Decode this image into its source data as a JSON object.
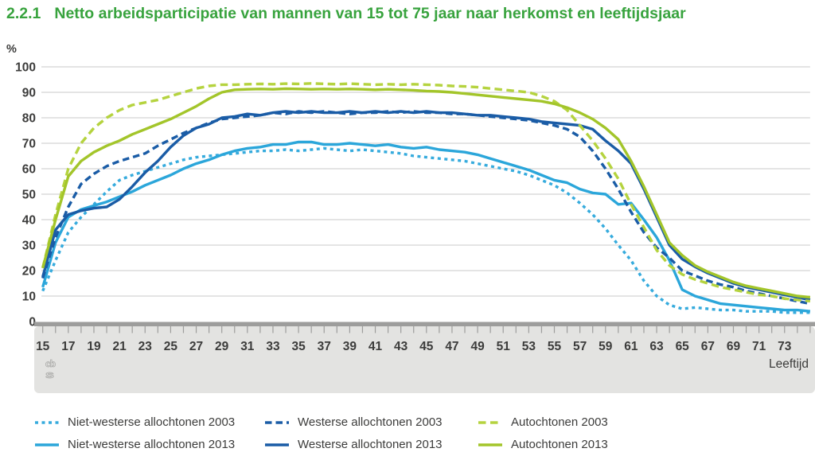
{
  "title": {
    "number": "2.2.1",
    "text": "Netto arbeidsparticipatie van mannen van 15 tot 75 jaar naar herkomst en leeftijdsjaar",
    "color": "#38a33e"
  },
  "chart_data": {
    "type": "line",
    "title": "Netto arbeidsparticipatie van mannen van 15 tot 75 jaar naar herkomst en leeftijdsjaar",
    "y_unit_label": "%",
    "xlabel": "Leeftijd",
    "x_start": 15,
    "x_end": 75,
    "x_tick_step": 1,
    "x_tick_label_step": 2,
    "x_tick_label_last": 73,
    "ylim": [
      0,
      100
    ],
    "y_tick_step": 10,
    "grid": true,
    "legend_position": "bottom",
    "grid_color": "#c9c9c9",
    "axis_bar_color": "#9d9d9c",
    "band_color": "#e3e3e1",
    "series": [
      {
        "label": "Niet-westerse allochtonen 2003",
        "year": 2003,
        "style": "dashed",
        "color": "#36abdd",
        "dash": "4 4.5",
        "values": [
          12,
          24,
          35,
          41,
          46,
          51,
          55.5,
          57.5,
          59,
          60.5,
          62,
          63.5,
          64.5,
          65,
          65.5,
          66,
          66.5,
          67,
          67,
          67.5,
          67,
          67.5,
          68,
          67.5,
          67,
          67.5,
          67,
          66.5,
          66,
          65,
          64.5,
          64,
          63.5,
          63,
          62,
          61,
          60,
          59,
          57.5,
          55.5,
          53.5,
          50.5,
          46.5,
          42,
          36.5,
          30,
          24,
          16,
          10,
          6.5,
          5,
          5.5,
          5,
          4.5,
          4.5,
          4,
          4,
          4,
          3.5,
          3.5,
          3.5
        ]
      },
      {
        "label": "Westerse allochtonen 2003",
        "year": 2003,
        "style": "dashed",
        "color": "#1a5ca6",
        "dash": "8.5 5",
        "values": [
          17,
          33,
          45,
          54,
          58,
          61,
          63,
          64.5,
          66,
          69,
          71.5,
          74,
          76,
          78,
          79.5,
          80,
          80.5,
          81,
          82,
          81.5,
          82.5,
          82,
          82.5,
          82,
          81.5,
          82,
          82,
          82.5,
          82,
          82.5,
          82,
          82,
          81.5,
          81.5,
          81,
          80.5,
          80,
          79.5,
          79,
          78,
          77,
          75.5,
          72.5,
          67,
          60,
          52,
          43,
          35,
          29,
          25,
          20,
          18,
          16,
          14.5,
          13.5,
          12,
          11,
          10,
          9,
          8,
          7
        ]
      },
      {
        "label": "Autochtonen 2003",
        "year": 2003,
        "style": "dashed",
        "color": "#b5d33f",
        "dash": "9.5 5.5",
        "values": [
          21,
          42,
          60,
          70,
          76,
          80,
          83,
          85,
          86,
          87,
          88.5,
          90,
          91.5,
          92.5,
          93,
          93,
          93.2,
          93.3,
          93.2,
          93.4,
          93.3,
          93.5,
          93.3,
          93.2,
          93.4,
          93.2,
          93,
          93.2,
          93,
          93.2,
          93,
          92.8,
          92.5,
          92.3,
          92,
          91.5,
          91,
          90.5,
          90,
          88.5,
          86.5,
          83,
          77,
          71,
          64,
          56,
          46,
          37,
          28,
          22,
          18.5,
          16.5,
          15,
          13.5,
          12.5,
          11.5,
          10.5,
          10,
          9,
          8.5,
          8
        ]
      },
      {
        "label": "Niet-westerse allochtonen 2013",
        "year": 2013,
        "style": "solid",
        "color": "#2ba6da",
        "dash": "",
        "values": [
          13.5,
          31,
          41,
          44,
          45.5,
          47,
          49,
          51,
          53.5,
          55.5,
          57.5,
          60,
          62,
          63.5,
          65.5,
          67,
          68,
          68.5,
          69.5,
          69.5,
          70.5,
          70.5,
          69.5,
          69.5,
          70,
          69.5,
          69,
          69.5,
          68.5,
          68,
          68.5,
          67.5,
          67,
          66.5,
          65.5,
          64,
          62.5,
          61,
          59.5,
          57.5,
          55.5,
          54.5,
          52,
          50.5,
          50,
          46,
          46.5,
          40,
          33,
          24,
          12.5,
          10,
          8.5,
          7,
          6.5,
          6,
          5.5,
          5,
          4.5,
          4.5,
          4
        ]
      },
      {
        "label": "Westerse allochtonen 2013",
        "year": 2013,
        "style": "solid",
        "color": "#1a5ca6",
        "dash": "",
        "values": [
          17.5,
          36,
          42,
          43.5,
          44.5,
          45,
          48,
          53,
          58.5,
          63,
          68.5,
          73,
          76,
          77.5,
          80,
          80.5,
          81.5,
          81,
          82,
          82.5,
          82,
          82.5,
          82,
          82,
          82.5,
          82,
          82.5,
          82,
          82.5,
          82,
          82.5,
          82,
          82,
          81.5,
          81,
          81,
          80.5,
          80,
          79.5,
          78.5,
          78,
          77.5,
          77,
          75.5,
          71,
          67,
          62,
          52,
          41,
          30,
          24.5,
          21.5,
          19,
          17,
          15,
          13.5,
          12.5,
          11.5,
          10.5,
          9.5,
          8.5
        ]
      },
      {
        "label": "Autochtonen 2013",
        "year": 2013,
        "style": "solid",
        "color": "#a3c52a",
        "dash": "",
        "values": [
          21,
          40,
          57,
          63,
          66.5,
          69,
          71,
          73.5,
          75.5,
          77.5,
          79.5,
          82,
          84.5,
          87.5,
          90,
          91,
          91.2,
          91.3,
          91.2,
          91.4,
          91.3,
          91.2,
          91.3,
          91.2,
          91.3,
          91.2,
          91,
          91.2,
          91,
          90.8,
          90.5,
          90.3,
          90,
          89.5,
          89,
          88.5,
          88,
          87.5,
          87,
          86.5,
          85.5,
          84,
          82,
          79.5,
          76,
          71.5,
          63,
          53,
          42,
          31,
          26,
          22,
          19.5,
          17.5,
          15.5,
          14,
          13,
          12,
          11,
          10,
          9.5
        ]
      }
    ]
  },
  "branding": {
    "logo_icon": "cbs-logo"
  }
}
